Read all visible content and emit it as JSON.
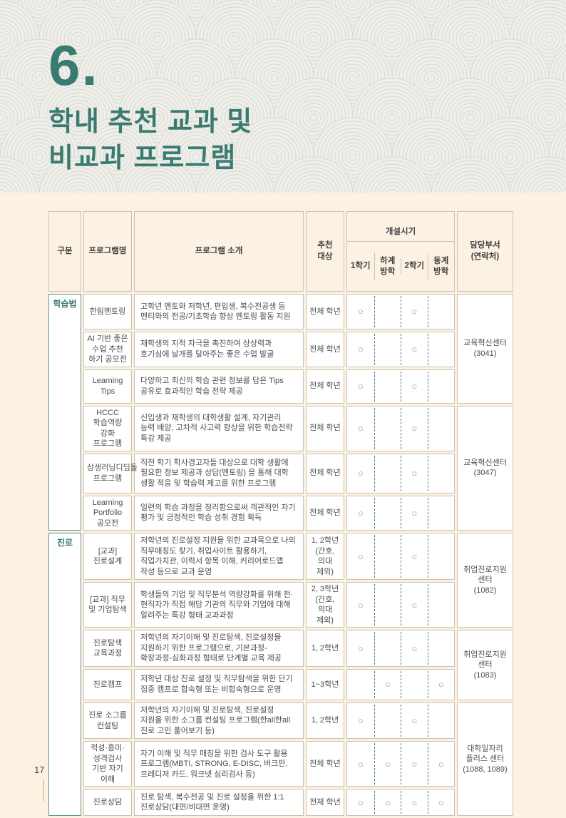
{
  "page": {
    "number": "17"
  },
  "header": {
    "section_number": "6.",
    "title_line1": "학내 추천 교과 및",
    "title_line2": "비교과 프로그램"
  },
  "colors": {
    "accent_teal": "#3a7b71",
    "cell_border": "#cdc1af",
    "category_border": "#5f948b",
    "dashed_divider": "#3f8278",
    "page_background": "#fcf2e4",
    "band_background": "#f0eee9"
  },
  "table": {
    "headers": {
      "category": "구분",
      "program_name": "프로그램명",
      "program_intro": "프로그램 소개",
      "target": "추천\n대상",
      "period_group": "개설시기",
      "period_cols": [
        "1학기",
        "하계\n방학",
        "2학기",
        "동계\n방학"
      ],
      "department": "담당부서\n(연락처)"
    },
    "categories": [
      {
        "label": "학습법"
      },
      {
        "label": "진로"
      }
    ],
    "departments": [
      {
        "name": "교육혁신센터",
        "phone": "(3041)"
      },
      {
        "name": "교육혁신센터",
        "phone": "(3047)"
      },
      {
        "name": "취업진로지원 센터",
        "phone": "(1082)"
      },
      {
        "name": "취업진로지원 센터",
        "phone": "(1083)"
      },
      {
        "name": "대학일자리 플러스 센터",
        "phone": "(1088, 1089)"
      }
    ],
    "rows": [
      {
        "name": "한림멘토링",
        "desc": "고학년 멘토와 저학년, 편입생, 복수전공생 등 멘티와의 전공/기초학습 향상 멘토링 활동 지원",
        "target": "전체 학년",
        "periods": [
          "○",
          "",
          "○",
          ""
        ]
      },
      {
        "name": "AI 기반 좋은 수업 추천 하기 공모전",
        "desc": "재학생의 지적 자극을 촉진하여 상상력과 호기심에 날개를 달아주는 좋은 수업 발굴",
        "target": "전체 학년",
        "periods": [
          "○",
          "",
          "○",
          ""
        ]
      },
      {
        "name": "Learning Tips",
        "desc": "다양하고 최신의 학습 관련 정보를 담은 Tips 공유로 효과적인 학습 전략 제공",
        "target": "전체 학년",
        "periods": [
          "○",
          "",
          "○",
          ""
        ]
      },
      {
        "name": "HCCC 학습역량 강화 프로그램",
        "desc": "신입생과 재학생의 대학생활 설계, 자기관리 능력 배양, 고차적 사고력 향상을 위한 학습전략 특강 제공",
        "target": "전체 학년",
        "periods": [
          "○",
          "",
          "○",
          ""
        ]
      },
      {
        "name": "상생러닝디딤돌 프로그램",
        "desc": "직전 학기 학사경고자들 대상으로 대학 생활에 필요한 정보 제공과 상담(멘토링) 을 통해 대학 생활 적응 및 학습력 제고를 위한 프로그램",
        "target": "전체 학년",
        "periods": [
          "○",
          "",
          "○",
          ""
        ]
      },
      {
        "name": "Learning Portfolio 공모전",
        "desc": "일련의 학습 과정을 정리함으로써 객관적인 자기 평가 및 긍정적인 학습 성취 경험 획득",
        "target": "전체 학년",
        "periods": [
          "○",
          "",
          "○",
          ""
        ]
      },
      {
        "name": "[교과] 진로설계",
        "desc": "저학년의 진로설정 지원을 위한 교과목으로 나의 직무매칭도 찾기, 취업사이트 활용하기, 직업가치관, 이력서 항목 이해, 커리어로드맵 작성 등으로 교과 운영",
        "target": "1, 2학년 (간호,의대 제외)",
        "periods": [
          "○",
          "",
          "○",
          ""
        ]
      },
      {
        "name": "[교과] 직무 및 기업탐색",
        "desc": "학생들의 기업 및 직무분석 역량강화를 위해 전·현직자가 직접 해당 기관의 직무와 기업에 대해 알려주는 특강 형태 교과과정",
        "target": "2, 3학년 (간호,의대 제외)",
        "periods": [
          "○",
          "",
          "○",
          ""
        ]
      },
      {
        "name": "진로탐색 교육과정",
        "desc": "저학년의 자기이해 및 진로탐색, 진로설정을 지원하기 위한 프로그램으로, 기본과정-확장과정-심화과정 형태로 단계별 교육 제공",
        "target": "1, 2학년",
        "periods": [
          "○",
          "",
          "○",
          ""
        ]
      },
      {
        "name": "진로캠프",
        "desc": "저학년 대상 진로 설정 및 직무탐색을 위한 단기 집중 캠프로 합숙형 또는 비합숙형으로 운영",
        "target": "1~3학년",
        "periods": [
          "",
          "○",
          "",
          "○"
        ]
      },
      {
        "name": "진로 소그룹 컨설팅",
        "desc": "저학년의 자기이해 및 진로탐색, 진로설정 지원을 위한 소그룹 컨설팅 프로그램(한all한all 진로 고민 풀어보기 등)",
        "target": "1, 2학년",
        "periods": [
          "○",
          "",
          "○",
          ""
        ]
      },
      {
        "name": "적성·흥미·성격검사 기반 자기 이해",
        "desc": "자기 이해 및 직무 매칭을 위한 검사 도구 활용 프로그램(MBTI, STRONG, E-DISC, 버크만, 프레디저 카드, 워크넷 심리검사 등)",
        "target": "전체 학년",
        "periods": [
          "○",
          "○",
          "○",
          "○"
        ]
      },
      {
        "name": "진로상담",
        "desc": "진로 탐색, 복수전공 및 진로 설정을 위한 1:1 진로상담(대면/비대면 운영)",
        "target": "전체 학년",
        "periods": [
          "○",
          "○",
          "○",
          "○"
        ]
      }
    ]
  }
}
